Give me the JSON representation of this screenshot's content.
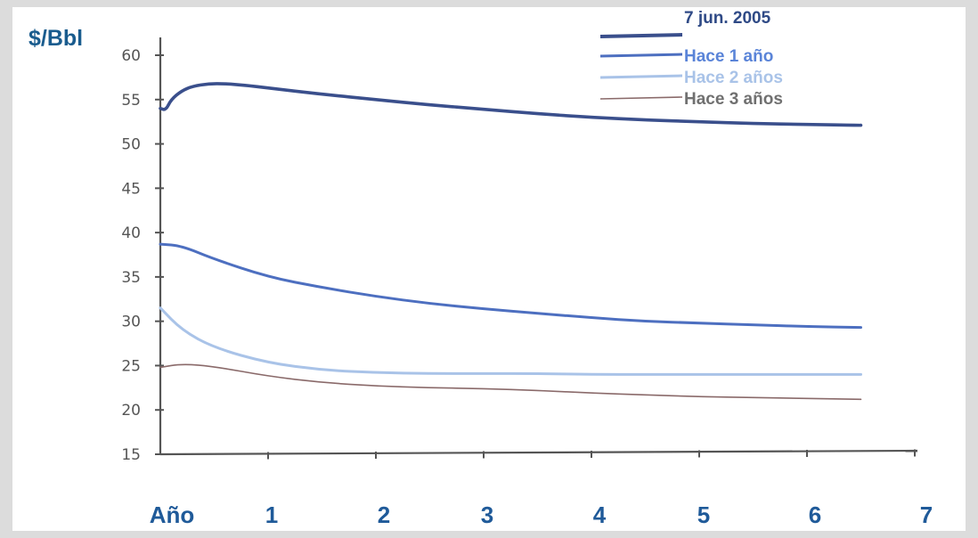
{
  "chart_data": {
    "type": "line",
    "ylabel": "$/Bbl",
    "ylim": [
      15,
      60
    ],
    "yticks": [
      60,
      55,
      50,
      45,
      40,
      35,
      30,
      25,
      20,
      15
    ],
    "xlim": [
      0,
      7
    ],
    "xticks": [
      "Año",
      "1",
      "2",
      "3",
      "4",
      "5",
      "6",
      "7"
    ],
    "legend_position": "top-right",
    "series": [
      {
        "name": "7  jun. 2005",
        "color": "#3a4f8c",
        "x": [
          0,
          0.05,
          0.1,
          0.2,
          0.3,
          0.45,
          0.6,
          0.8,
          1.0,
          1.5,
          2.0,
          2.5,
          3.0,
          3.5,
          4.0,
          4.5,
          5.0,
          5.5,
          6.0,
          6.5
        ],
        "values": [
          54.0,
          53.8,
          55.0,
          56.0,
          56.5,
          56.8,
          56.8,
          56.6,
          56.3,
          55.6,
          55.0,
          54.4,
          53.9,
          53.4,
          53.0,
          52.7,
          52.5,
          52.3,
          52.2,
          52.1
        ]
      },
      {
        "name": "Hace 1 año",
        "color": "#4d6fc0",
        "x": [
          0,
          0.2,
          0.5,
          1.0,
          1.5,
          2.0,
          2.5,
          3.0,
          3.5,
          4.0,
          4.5,
          5.0,
          5.5,
          6.0,
          6.5
        ],
        "values": [
          38.7,
          38.5,
          37.0,
          35.0,
          33.8,
          32.8,
          32.0,
          31.4,
          30.9,
          30.4,
          30.0,
          29.8,
          29.6,
          29.4,
          29.3
        ]
      },
      {
        "name": "Hace 2 años",
        "color": "#a9c3e8",
        "x": [
          0,
          0.2,
          0.5,
          1.0,
          1.5,
          2.0,
          2.5,
          3.0,
          3.5,
          4.0,
          4.5,
          5.0,
          5.5,
          6.0,
          6.5
        ],
        "values": [
          31.5,
          29.0,
          27.0,
          25.3,
          24.5,
          24.2,
          24.1,
          24.1,
          24.1,
          24.0,
          24.0,
          24.0,
          24.0,
          24.0,
          24.0
        ]
      },
      {
        "name": "Hace 3 años",
        "color": "#8a6a6a",
        "x": [
          0,
          0.2,
          0.5,
          1.0,
          1.5,
          2.0,
          2.5,
          3.0,
          3.5,
          4.0,
          4.5,
          5.0,
          5.5,
          6.0,
          6.5
        ],
        "values": [
          24.8,
          25.2,
          24.9,
          23.8,
          23.1,
          22.7,
          22.5,
          22.4,
          22.2,
          21.9,
          21.7,
          21.5,
          21.4,
          21.3,
          21.2
        ]
      }
    ]
  }
}
